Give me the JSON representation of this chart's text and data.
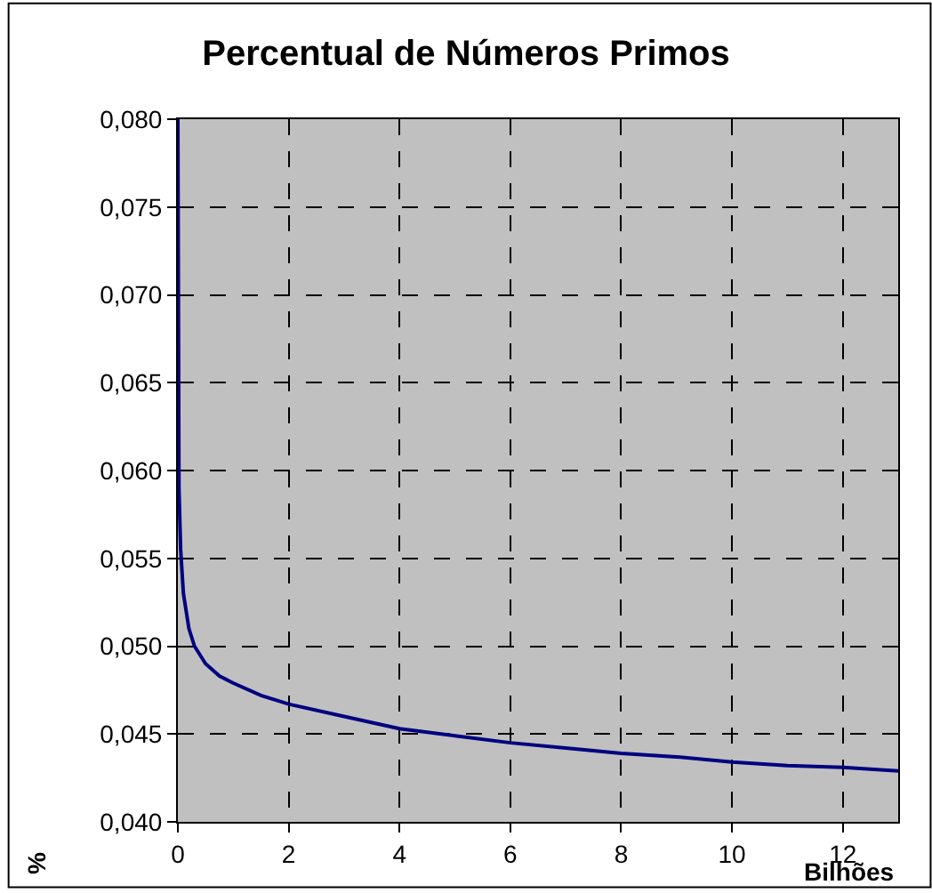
{
  "chart_data": {
    "type": "line",
    "title": "Percentual de Números Primos",
    "xlabel": "Bilhões",
    "ylabel": "%",
    "x": [
      0,
      0.02,
      0.05,
      0.1,
      0.2,
      0.3,
      0.5,
      0.75,
      1,
      1.5,
      2,
      3,
      4,
      5,
      6,
      7,
      8,
      9,
      10,
      11,
      12,
      13
    ],
    "series": [
      {
        "color": "#000080",
        "values": [
          0.08,
          0.059,
          0.0555,
          0.053,
          0.051,
          0.05,
          0.049,
          0.0483,
          0.0479,
          0.0472,
          0.0467,
          0.046,
          0.0453,
          0.0449,
          0.0445,
          0.0442,
          0.0439,
          0.0437,
          0.0434,
          0.0432,
          0.0431,
          0.0429
        ]
      }
    ],
    "xlim": [
      0,
      13
    ],
    "xticks": [
      0,
      2,
      4,
      6,
      8,
      10,
      12
    ],
    "ylim": [
      0.04,
      0.08
    ],
    "yticks": [
      {
        "value": 0.04,
        "label": "0,040"
      },
      {
        "value": 0.045,
        "label": "0,045"
      },
      {
        "value": 0.05,
        "label": "0,050"
      },
      {
        "value": 0.055,
        "label": "0,055"
      },
      {
        "value": 0.06,
        "label": "0,060"
      },
      {
        "value": 0.065,
        "label": "0,065"
      },
      {
        "value": 0.07,
        "label": "0,070"
      },
      {
        "value": 0.075,
        "label": "0,075"
      },
      {
        "value": 0.08,
        "label": "0,080"
      }
    ],
    "grid": true,
    "legend": false,
    "marker": "none",
    "line_style": "solid"
  }
}
